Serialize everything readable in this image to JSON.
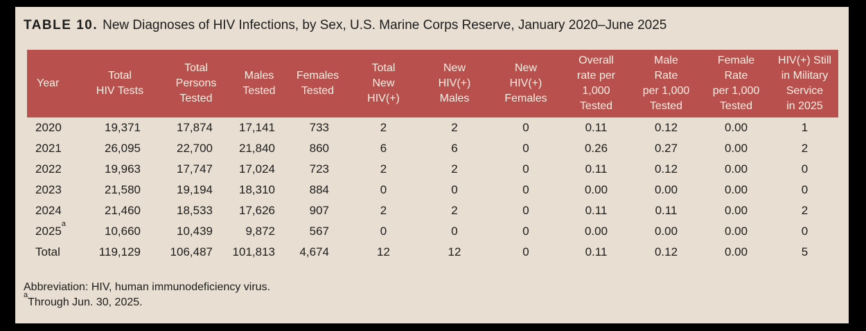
{
  "colors": {
    "frame": "#000000",
    "page_bg": "#e8dfd2",
    "header_bg": "#b8504d",
    "header_text": "#f7efe4",
    "body_text": "#1b1b1b"
  },
  "title": {
    "prefix": "TABLE 10.",
    "text": "New Diagnoses of HIV Infections, by Sex, U.S. Marine Corps Reserve, January 2020–June 2025"
  },
  "table": {
    "columns": [
      {
        "id": "year",
        "label": "Year"
      },
      {
        "id": "total-hiv-tests",
        "label": "Total\nHIV Tests"
      },
      {
        "id": "total-persons-tested",
        "label": "Total\nPersons\nTested"
      },
      {
        "id": "males-tested",
        "label": "Males\nTested"
      },
      {
        "id": "females-tested",
        "label": "Females\nTested"
      },
      {
        "id": "total-new-hiv",
        "label": "Total\nNew\nHIV(+)"
      },
      {
        "id": "new-hiv-males",
        "label": "New\nHIV(+)\nMales"
      },
      {
        "id": "new-hiv-females",
        "label": "New\nHIV(+)\nFemales"
      },
      {
        "id": "overall-rate",
        "label": "Overall\nrate per\n1,000\nTested"
      },
      {
        "id": "male-rate",
        "label": "Male\nRate\nper 1,000\nTested"
      },
      {
        "id": "female-rate",
        "label": "Female\nRate\nper 1,000\nTested"
      },
      {
        "id": "still-in-service",
        "label": "HIV(+) Still\nin Military\nService\nin 2025"
      }
    ],
    "rows": [
      [
        "2020",
        "19,371",
        "17,874",
        "17,141",
        "733",
        "2",
        "2",
        "0",
        "0.11",
        "0.12",
        "0.00",
        "1"
      ],
      [
        "2021",
        "26,095",
        "22,700",
        "21,840",
        "860",
        "6",
        "6",
        "0",
        "0.26",
        "0.27",
        "0.00",
        "2"
      ],
      [
        "2022",
        "19,963",
        "17,747",
        "17,024",
        "723",
        "2",
        "2",
        "0",
        "0.11",
        "0.12",
        "0.00",
        "0"
      ],
      [
        "2023",
        "21,580",
        "19,194",
        "18,310",
        "884",
        "0",
        "0",
        "0",
        "0.00",
        "0.00",
        "0.00",
        "0"
      ],
      [
        "2024",
        "21,460",
        "18,533",
        "17,626",
        "907",
        "2",
        "2",
        "0",
        "0.11",
        "0.11",
        "0.00",
        "2"
      ],
      [
        "2025^a",
        "10,660",
        "10,439",
        "9,872",
        "567",
        "0",
        "0",
        "0",
        "0.00",
        "0.00",
        "0.00",
        "0"
      ],
      [
        "Total",
        "119,129",
        "106,487",
        "101,813",
        "4,674",
        "12",
        "12",
        "0",
        "0.11",
        "0.12",
        "0.00",
        "5"
      ]
    ]
  },
  "footnotes": {
    "abbreviation": "Abbreviation: HIV, human immunodeficiency virus.",
    "note_marker": "a",
    "note_text": "Through Jun. 30, 2025."
  }
}
